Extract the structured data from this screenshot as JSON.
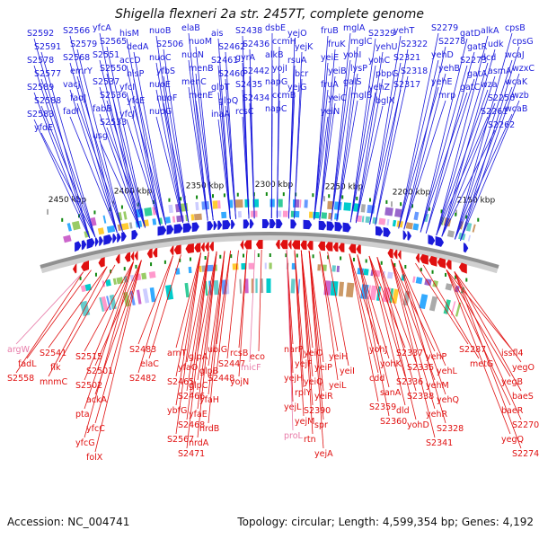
{
  "title": "Shigella flexneri 2a str. 2457T, complete genome",
  "footer": {
    "accession_label": "Accession:",
    "accession": "NC_004741",
    "topology_label": "Topology:",
    "topology": "circular",
    "length_label": "Length:",
    "length": "4,599,354 bp",
    "genes_label": "Genes:",
    "genes": "4,192"
  },
  "colors": {
    "forward": "#1a1adb",
    "reverse": "#e01010",
    "faded": "#e87aa8",
    "backbone": "#909090",
    "tick": "#118811"
  },
  "scale_labels": [
    "2450 kbp",
    "2400 kbp",
    "2350 kbp",
    "2300 kbp",
    "2250 kbp",
    "2200 kbp",
    "2150 kbp"
  ],
  "forward_gene_columns": [
    [
      "S2592",
      "S2591",
      "S2578",
      "S2577",
      "S2589",
      "S2588",
      "S2583",
      "yfdE"
    ],
    [
      "S2566",
      "S2579",
      "S2568",
      "emrY",
      "vacJ",
      "fadJ",
      "fadI"
    ],
    [
      "yfcA",
      "S2565",
      "S2551",
      "S2550",
      "S2537",
      "S2536",
      "fabB",
      "S2533",
      "usg"
    ],
    [
      "hisM",
      "dedA",
      "accD",
      "hisP",
      "yfcI",
      "yfcE",
      "yfcJ"
    ],
    [
      "nuoB",
      "S2506",
      "nuoC",
      "yfbS",
      "nuoE",
      "nuoF",
      "nuoG"
    ],
    [
      "elaB",
      "nuoM",
      "nuoN",
      "menB",
      "menC",
      "menE"
    ],
    [
      "ais",
      "S2462",
      "S2461",
      "S2460",
      "glpT",
      "glpQ",
      "inaA"
    ],
    [
      "S2438",
      "S2436",
      "gyrA",
      "S2442",
      "S2435",
      "S2434",
      "rcsC"
    ],
    [
      "dsbE",
      "ccmH",
      "alkB",
      "yojI",
      "napG",
      "ccmB",
      "napC"
    ],
    [
      "yejO",
      "yejK",
      "rsuA",
      "bcr",
      "yejG"
    ],
    [
      "fruB",
      "fruK",
      "yeiE",
      "yeiB",
      "fruA",
      "yeiC",
      "yeiN"
    ],
    [
      "mglA",
      "mglC",
      "yohI",
      "lysP",
      "galS",
      "mglB"
    ],
    [
      "S2329",
      "yehU",
      "yohC",
      "pbpG",
      "yehZ",
      "bglX"
    ],
    [
      "yehT",
      "S2322",
      "S2321",
      "S2318",
      "S2317"
    ],
    [
      "S2279",
      "S2278",
      "yehD",
      "yehB",
      "yehE",
      "mrp"
    ],
    [
      "gatD",
      "gatR",
      "S2273",
      "gatA",
      "gatC"
    ],
    [
      "alkA",
      "udk",
      "dcd",
      "asmA",
      "wza",
      "S2256",
      "S2261",
      "S2262"
    ],
    [
      "cpsB",
      "cpsG",
      "wcaJ",
      "wzxC",
      "wcaK",
      "wzb",
      "wcaB"
    ]
  ],
  "reverse_gene_columns": [
    [
      "argW",
      "fadL",
      "S2558"
    ],
    [
      "S2541",
      "flk",
      "mnmC"
    ],
    [
      "S2515",
      "S2501",
      "S2502",
      "ackA",
      "pta",
      "yfcC",
      "yfcG",
      "folX"
    ],
    [
      "S2483",
      "elaC",
      "S2482"
    ],
    [
      "arnT",
      "yfaO",
      "S2465",
      "S2466",
      "ybfG",
      "S2468",
      "S2567",
      "S2471"
    ],
    [
      "glpA",
      "glpB",
      "glpC",
      "yfaH",
      "yfaE",
      "nrdB",
      "nrdA"
    ],
    [
      "ubiG",
      "S2447",
      "S2448"
    ],
    [
      "rcsB",
      "micF",
      "yojN"
    ],
    [
      "eco"
    ],
    [
      "narP",
      "yejF",
      "yejH",
      "rplY",
      "yejL",
      "yejM",
      "proL"
    ],
    [
      "yeiO",
      "yeiP",
      "yeiQ",
      "yeiR",
      "S2390",
      "spr",
      "rtn",
      "yejA"
    ],
    [
      "yeiH",
      "yeiI",
      "yeiL"
    ],
    [
      "yohJ",
      "yohK",
      "cdd",
      "sanA",
      "S2359",
      "S2360"
    ],
    [
      "S2337",
      "S2335",
      "S2336",
      "S2338",
      "dld",
      "yohD"
    ],
    [
      "yehP",
      "yehL",
      "yehM",
      "yehQ",
      "yehR",
      "S2328",
      "S2341"
    ],
    [
      "S2287",
      "metG"
    ],
    [
      "issfl4",
      "yegO",
      "yegB",
      "baeS",
      "baeR",
      "S2270",
      "yegQ",
      "S2274"
    ]
  ]
}
